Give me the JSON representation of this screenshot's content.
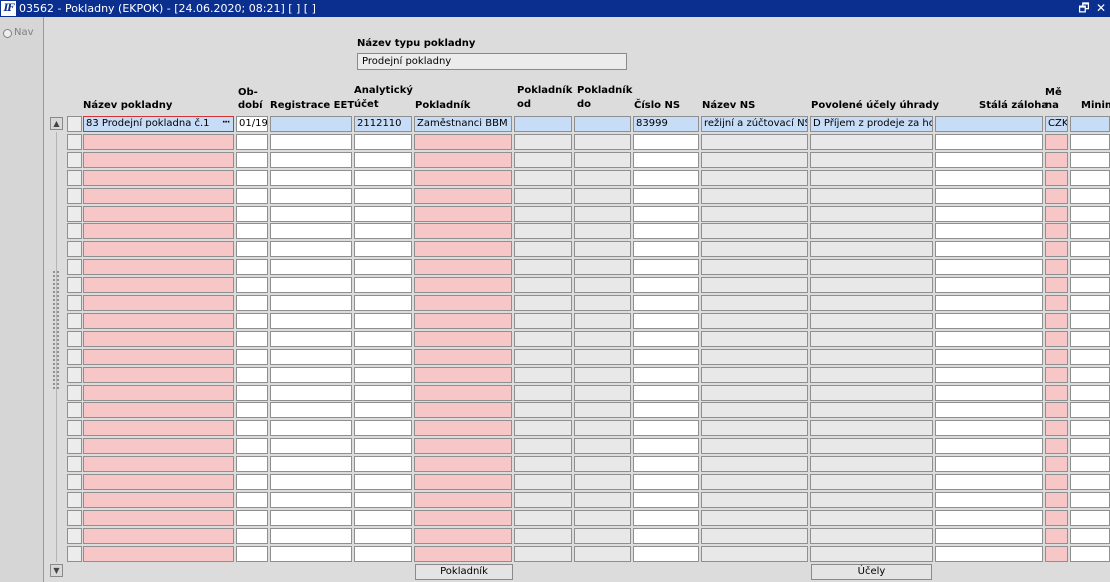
{
  "window": {
    "title": "03562 - Pokladny (EKPOK) - [24.06.2020; 08:21]  [ ]  [ ]",
    "restore_symbol": "🗗",
    "close_symbol": "✕",
    "app_icon_text": "IF"
  },
  "nav": {
    "label": "Nav"
  },
  "form": {
    "typ_label": "Název typu pokladny",
    "typ_value": "Prodejní pokladny"
  },
  "columns": {
    "nazev": "Název pokladny",
    "obdobi_1": "Ob-",
    "obdobi_2": "dobí",
    "eet": "Registrace EET",
    "ucet_1": "Analytický",
    "ucet_2": "účet",
    "pokladnik": "Pokladník",
    "od_1": "Pokladník",
    "od_2": "od",
    "do_1": "Pokladník",
    "do_2": "do",
    "cislo_ns": "Číslo NS",
    "nazev_ns": "Název NS",
    "ucely": "Povolené účely úhrady",
    "zaloha": "Stálá záloha",
    "mena_1": "Mě",
    "mena_2": "na",
    "minim": "Minim"
  },
  "row1": {
    "nazev": "83 Prodejní pokladna č.1",
    "obdobi": "01/19",
    "eet": "",
    "ucet": "2112110",
    "pokladnik": "Zaměstnanci BBM",
    "od": "",
    "do": "",
    "cislo_ns": "83999",
    "nazev_ns": "režijní a zúčtovací NS",
    "ucely": "D Příjem z prodeje za hot",
    "zaloha": "",
    "mena": "CZK",
    "minim": ""
  },
  "row_count": 25,
  "buttons": {
    "pokladnik": "Pokladník",
    "ucely": "Účely",
    "ellipsis": "···"
  },
  "scroll": {
    "up": "▲",
    "down": "▼"
  },
  "colors": {
    "required_field": "#f7c6c6",
    "readonly_field": "#e8e8e8",
    "selected_row": "#c7dcf6",
    "titlebar": "#0b2f8e"
  }
}
